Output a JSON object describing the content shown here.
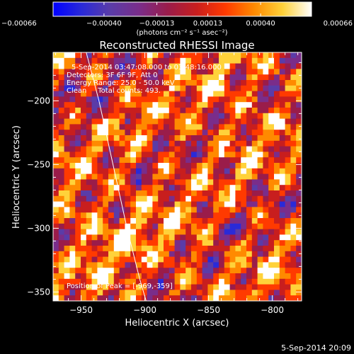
{
  "colors": {
    "background": "#000000",
    "foreground": "#ffffff",
    "colormap": [
      "#0000ff",
      "#2a2ad8",
      "#5a3ca8",
      "#7a2d8a",
      "#9a1c4a",
      "#c81e1e",
      "#ff3a00",
      "#ff8a00",
      "#ffd23a",
      "#ffffff"
    ]
  },
  "chart_data": {
    "type": "heatmap",
    "title": "Reconstructed RHESSI Image",
    "xlabel": "Heliocentric X (arcsec)",
    "ylabel": "Heliocentric Y (arcsec)",
    "xlim": [
      -972,
      -777
    ],
    "ylim": [
      -357,
      -162
    ],
    "xticks": [
      -950,
      -900,
      -850,
      -800
    ],
    "yticks": [
      -350,
      -300,
      -250,
      -200
    ],
    "xtick_labels": [
      "−950",
      "−900",
      "−850",
      "−800"
    ],
    "ytick_labels": [
      "−350",
      "−300",
      "−250",
      "−200"
    ],
    "colorbar": {
      "range": [
        -0.00066,
        0.00066
      ],
      "ticks": [
        -0.00066,
        -0.0004,
        -0.00013,
        0.00013,
        0.0004,
        0.00066
      ],
      "tick_labels": [
        "−0.00066",
        "−0.00040",
        "−0.00013",
        "0.00013",
        "0.00040",
        "0.00066"
      ],
      "unit_label": "(photons cm⁻² s⁻¹ asec⁻²)"
    },
    "annotations": {
      "time_range": "5-Sep-2014 03:47:08.000 to 03:48:16.000",
      "detectors": "Detectors: 3F 6F 9F, Att 0",
      "energy": "Energy Range: 25.0 - 50.0 keV",
      "clean": "Clean     Total counts: 493.",
      "peak": "Position of Peak = [-969,-359]"
    },
    "limb": {
      "points": [
        [
          -946,
          -162
        ],
        [
          -936,
          -200
        ],
        [
          -925,
          -250
        ],
        [
          -914,
          -300
        ],
        [
          -904,
          -340
        ],
        [
          -899,
          -357
        ]
      ]
    },
    "timestamp": "5-Sep-2014 20:09"
  }
}
